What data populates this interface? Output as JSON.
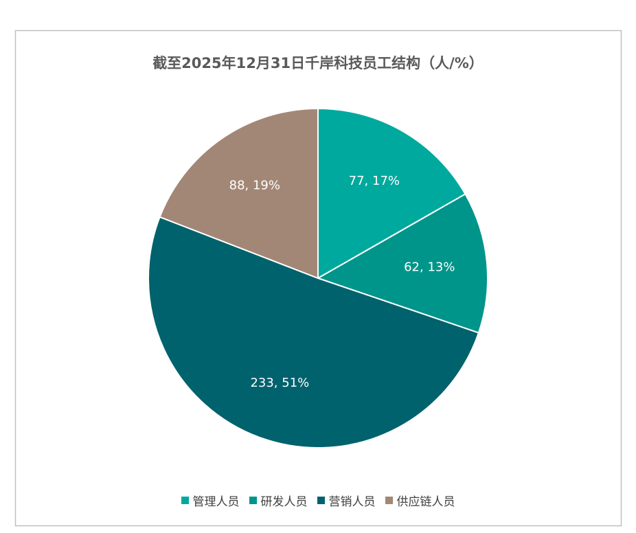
{
  "chart_data": {
    "type": "pie",
    "title": "截至2025年12月31日千岸科技员工结构（人/%）",
    "categories": [
      "管理人员",
      "研发人员",
      "营销人员",
      "供应链人员"
    ],
    "values": [
      77,
      62,
      233,
      88
    ],
    "value_labels": [
      "77, 17%",
      "62, 13%",
      "233, 51%",
      "88, 19%"
    ],
    "colors": [
      "#00a99d",
      "#00958a",
      "#00626d",
      "#a38776"
    ],
    "legend": "bottom"
  }
}
